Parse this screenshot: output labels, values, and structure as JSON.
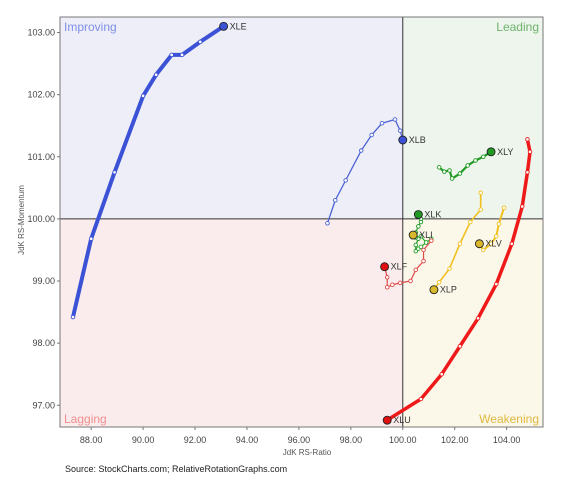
{
  "chart_data": {
    "type": "scatter",
    "title": "",
    "xlabel": "JdK RS-Ratio",
    "ylabel": "JdK RS-Momentum",
    "xlim": [
      86.8,
      105.4
    ],
    "ylim": [
      96.65,
      103.25
    ],
    "center": [
      100,
      100
    ],
    "x_ticks": [
      "88.00",
      "90.00",
      "92.00",
      "94.00",
      "96.00",
      "98.00",
      "100.00",
      "102.00",
      "104.00"
    ],
    "y_ticks": [
      "97.00",
      "98.00",
      "99.00",
      "100.00",
      "101.00",
      "102.00",
      "103.00"
    ],
    "grid": false,
    "quadrants": [
      {
        "name": "Improving",
        "position": "top-left",
        "bg": "#eeeef8",
        "text_color": "#7f8fe6"
      },
      {
        "name": "Leading",
        "position": "top-right",
        "bg": "#eef5ec",
        "text_color": "#6db36a"
      },
      {
        "name": "Lagging",
        "position": "bottom-left",
        "bg": "#faecec",
        "text_color": "#ef8f8f"
      },
      {
        "name": "Weakening",
        "position": "bottom-right",
        "bg": "#fbf8ea",
        "text_color": "#e0b83f"
      }
    ],
    "series": [
      {
        "name": "XLE",
        "color": "#3b52d6",
        "head_color": "#3b52d6",
        "width": 4,
        "points": [
          [
            87.3,
            98.42
          ],
          [
            88.0,
            99.68
          ],
          [
            88.9,
            100.75
          ],
          [
            90.0,
            101.98
          ],
          [
            90.5,
            102.32
          ],
          [
            91.1,
            102.64
          ],
          [
            91.5,
            102.64
          ],
          [
            92.2,
            102.85
          ],
          [
            93.1,
            103.1
          ]
        ]
      },
      {
        "name": "XLB",
        "color": "#4a62d4",
        "head_color": "#3b52d6",
        "width": 1.3,
        "points": [
          [
            97.1,
            99.93
          ],
          [
            97.4,
            100.3
          ],
          [
            97.8,
            100.62
          ],
          [
            98.4,
            101.1
          ],
          [
            98.8,
            101.35
          ],
          [
            99.2,
            101.54
          ],
          [
            99.7,
            101.6
          ],
          [
            99.9,
            101.42
          ],
          [
            100.0,
            101.27
          ]
        ]
      },
      {
        "name": "XLY",
        "color": "#1f9a22",
        "head_color": "#1f9a22",
        "width": 2.2,
        "points": [
          [
            101.4,
            100.83
          ],
          [
            101.6,
            100.76
          ],
          [
            101.8,
            100.78
          ],
          [
            101.9,
            100.65
          ],
          [
            102.2,
            100.73
          ],
          [
            102.5,
            100.86
          ],
          [
            102.8,
            100.94
          ],
          [
            103.1,
            101.0
          ],
          [
            103.4,
            101.08
          ]
        ]
      },
      {
        "name": "XLK",
        "color": "#1f9a22",
        "head_color": "#1f9a22",
        "width": 1.2,
        "points": [
          [
            100.5,
            99.48
          ],
          [
            100.5,
            99.58
          ],
          [
            100.6,
            99.68
          ],
          [
            100.5,
            99.78
          ],
          [
            100.6,
            99.88
          ],
          [
            100.7,
            99.95
          ],
          [
            100.7,
            100.0
          ],
          [
            100.6,
            100.07
          ]
        ]
      },
      {
        "name": "XLI",
        "color": "#2aa82a",
        "head_color": "#d8b82a",
        "width": 1.2,
        "points": [
          [
            100.6,
            99.52
          ],
          [
            100.7,
            99.55
          ],
          [
            100.9,
            99.62
          ],
          [
            101.1,
            99.68
          ],
          [
            100.9,
            99.62
          ],
          [
            100.7,
            99.72
          ],
          [
            100.5,
            99.7
          ],
          [
            100.4,
            99.74
          ]
        ]
      },
      {
        "name": "XLF",
        "color": "#e04848",
        "head_color": "#e01010",
        "width": 1.2,
        "points": [
          [
            101.1,
            99.65
          ],
          [
            100.8,
            99.5
          ],
          [
            100.8,
            99.32
          ],
          [
            100.5,
            99.18
          ],
          [
            100.3,
            99.0
          ],
          [
            99.9,
            98.97
          ],
          [
            99.6,
            98.94
          ],
          [
            99.4,
            98.9
          ],
          [
            99.4,
            99.06
          ],
          [
            99.3,
            99.23
          ]
        ]
      },
      {
        "name": "XLV",
        "color": "#f0c020",
        "head_color": "#d8b82a",
        "width": 2,
        "points": [
          [
            103.9,
            100.18
          ],
          [
            103.7,
            99.92
          ],
          [
            103.6,
            99.72
          ],
          [
            103.4,
            99.6
          ],
          [
            103.1,
            99.5
          ],
          [
            102.95,
            99.6
          ]
        ]
      },
      {
        "name": "XLP",
        "color": "#f0c020",
        "head_color": "#d8b82a",
        "width": 1.6,
        "points": [
          [
            103.0,
            100.42
          ],
          [
            103.0,
            100.15
          ],
          [
            102.6,
            99.95
          ],
          [
            102.2,
            99.6
          ],
          [
            101.8,
            99.2
          ],
          [
            101.4,
            98.98
          ],
          [
            101.2,
            98.86
          ]
        ]
      },
      {
        "name": "XLU",
        "color": "#ee1a1a",
        "head_color": "#e01010",
        "width": 3.5,
        "points": [
          [
            104.8,
            101.28
          ],
          [
            104.9,
            101.08
          ],
          [
            104.8,
            100.75
          ],
          [
            104.6,
            100.2
          ],
          [
            104.2,
            99.6
          ],
          [
            103.6,
            98.95
          ],
          [
            102.9,
            98.4
          ],
          [
            102.2,
            97.95
          ],
          [
            101.5,
            97.5
          ],
          [
            100.7,
            97.1
          ],
          [
            99.4,
            96.76
          ]
        ]
      }
    ],
    "source": "Source: StockCharts.com; RelativeRotationGraphs.com"
  }
}
